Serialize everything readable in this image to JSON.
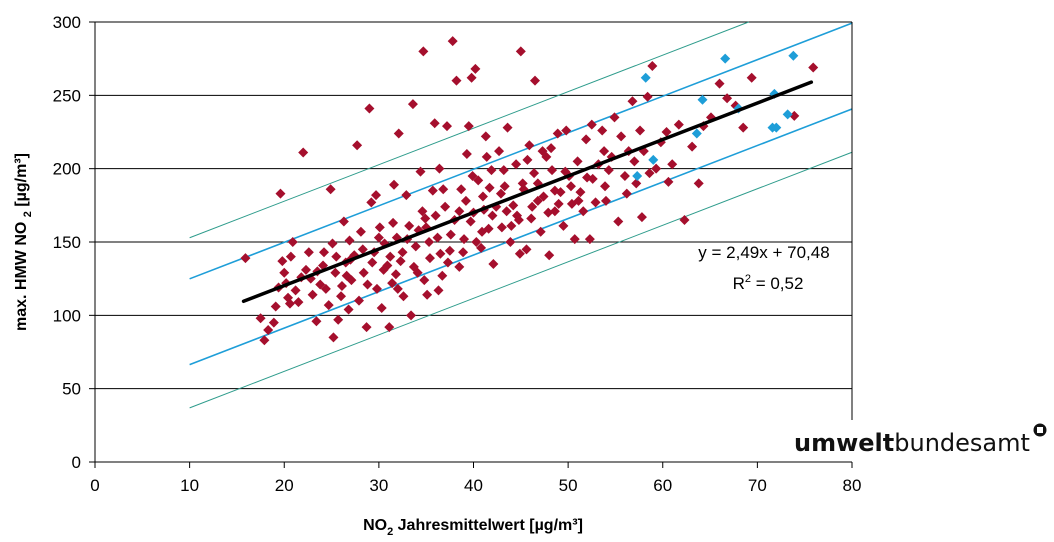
{
  "chart_data": {
    "type": "scatter",
    "title": "",
    "xlabel": "NO2 Jahresmittelwert [µg/m³]",
    "xlabel_parts": {
      "pre": "NO",
      "sub": "2",
      "post": " Jahresmittelwert [µg/m³]"
    },
    "ylabel": "max. HMW NO 2 [µg/m³]",
    "ylabel_parts": {
      "pre": "max. HMW NO ",
      "sub": "2",
      "post": " [µg/m³]"
    },
    "xlim": [
      0,
      80
    ],
    "ylim": [
      0,
      300
    ],
    "x_ticks": [
      "0",
      "10",
      "20",
      "30",
      "40",
      "50",
      "60",
      "70",
      "80"
    ],
    "y_ticks": [
      "0",
      "50",
      "100",
      "150",
      "200",
      "250",
      "300"
    ],
    "grid": "horizontal",
    "legend": "none",
    "colors": {
      "red_points": "#a50f2d",
      "blue_points": "#1e9ed8",
      "trend": "#000000",
      "blue_band": "#1e9ed8",
      "green_band": "#2e9c8c",
      "grid": "#000000"
    },
    "series": [
      {
        "values": [
          [
            15.9,
            139
          ],
          [
            17.5,
            98
          ],
          [
            17.9,
            83
          ],
          [
            18.3,
            90
          ],
          [
            18.9,
            95
          ],
          [
            19.1,
            106
          ],
          [
            19.4,
            119
          ],
          [
            19.6,
            183
          ],
          [
            19.8,
            137
          ],
          [
            20.0,
            129
          ],
          [
            20.2,
            122
          ],
          [
            20.4,
            112
          ],
          [
            20.6,
            108
          ],
          [
            20.9,
            150
          ],
          [
            21.2,
            117
          ],
          [
            21.5,
            109
          ],
          [
            21.8,
            126
          ],
          [
            22.0,
            211
          ],
          [
            22.3,
            131
          ],
          [
            22.6,
            143
          ],
          [
            23.0,
            114
          ],
          [
            23.4,
            96
          ],
          [
            23.8,
            121
          ],
          [
            24.1,
            134
          ],
          [
            24.4,
            118
          ],
          [
            24.7,
            107
          ],
          [
            24.9,
            186
          ],
          [
            25.1,
            149
          ],
          [
            25.2,
            85
          ],
          [
            25.4,
            129
          ],
          [
            25.7,
            97
          ],
          [
            26.0,
            113
          ],
          [
            26.3,
            164
          ],
          [
            26.5,
            136
          ],
          [
            26.8,
            104
          ],
          [
            27.1,
            124
          ],
          [
            27.4,
            141
          ],
          [
            27.7,
            216
          ],
          [
            27.9,
            110
          ],
          [
            28.1,
            157
          ],
          [
            28.4,
            129
          ],
          [
            28.7,
            92
          ],
          [
            29.0,
            241
          ],
          [
            29.2,
            177
          ],
          [
            29.5,
            143
          ],
          [
            29.8,
            118
          ],
          [
            30.1,
            160
          ],
          [
            30.3,
            105
          ],
          [
            30.6,
            149
          ],
          [
            30.9,
            134
          ],
          [
            31.1,
            92
          ],
          [
            31.4,
            122
          ],
          [
            31.6,
            189
          ],
          [
            31.9,
            153
          ],
          [
            32.1,
            224
          ],
          [
            32.3,
            137
          ],
          [
            32.6,
            113
          ],
          [
            32.9,
            182
          ],
          [
            33.2,
            161
          ],
          [
            33.4,
            100
          ],
          [
            33.6,
            244
          ],
          [
            33.9,
            147
          ],
          [
            34.1,
            129
          ],
          [
            34.4,
            198
          ],
          [
            34.7,
            280
          ],
          [
            34.9,
            166
          ],
          [
            35.1,
            114
          ],
          [
            35.4,
            139
          ],
          [
            35.7,
            185
          ],
          [
            35.9,
            231
          ],
          [
            36.2,
            153
          ],
          [
            36.4,
            200
          ],
          [
            36.7,
            127
          ],
          [
            37.0,
            174
          ],
          [
            37.2,
            229
          ],
          [
            37.5,
            144
          ],
          [
            37.8,
            287
          ],
          [
            38.0,
            165
          ],
          [
            38.2,
            260
          ],
          [
            38.5,
            133
          ],
          [
            38.7,
            186
          ],
          [
            39.0,
            152
          ],
          [
            39.3,
            210
          ],
          [
            39.5,
            229
          ],
          [
            39.8,
            262
          ],
          [
            40.0,
            170
          ],
          [
            40.2,
            268
          ],
          [
            40.5,
            192
          ],
          [
            40.8,
            146
          ],
          [
            41.0,
            181
          ],
          [
            41.3,
            222
          ],
          [
            41.6,
            159
          ],
          [
            41.9,
            199
          ],
          [
            42.1,
            135
          ],
          [
            42.4,
            174
          ],
          [
            42.7,
            212
          ],
          [
            43.0,
            160
          ],
          [
            43.3,
            188
          ],
          [
            43.6,
            228
          ],
          [
            43.9,
            150
          ],
          [
            44.2,
            175
          ],
          [
            44.5,
            203
          ],
          [
            44.8,
            165
          ],
          [
            45.0,
            280
          ],
          [
            45.3,
            186
          ],
          [
            45.6,
            145
          ],
          [
            45.9,
            216
          ],
          [
            46.2,
            174
          ],
          [
            46.5,
            260
          ],
          [
            46.8,
            190
          ],
          [
            47.1,
            157
          ],
          [
            47.4,
            181
          ],
          [
            47.7,
            208
          ],
          [
            48.0,
            141
          ],
          [
            48.3,
            199
          ],
          [
            48.6,
            171
          ],
          [
            48.9,
            224
          ],
          [
            49.2,
            184
          ],
          [
            49.5,
            161
          ],
          [
            49.8,
            226
          ],
          [
            50.1,
            195
          ],
          [
            50.4,
            176
          ],
          [
            50.7,
            152
          ],
          [
            51.0,
            205
          ],
          [
            51.3,
            184
          ],
          [
            51.6,
            171
          ],
          [
            51.9,
            220
          ],
          [
            52.3,
            152
          ],
          [
            52.6,
            193
          ],
          [
            52.9,
            177
          ],
          [
            53.2,
            203
          ],
          [
            53.6,
            226
          ],
          [
            53.9,
            188
          ],
          [
            54.3,
            199
          ],
          [
            54.6,
            208
          ],
          [
            54.9,
            235
          ],
          [
            55.3,
            164
          ],
          [
            55.6,
            222
          ],
          [
            56.0,
            195
          ],
          [
            56.4,
            212
          ],
          [
            56.8,
            246
          ],
          [
            57.2,
            190
          ],
          [
            57.6,
            226
          ],
          [
            58.0,
            212
          ],
          [
            58.4,
            249
          ],
          [
            58.9,
            270
          ],
          [
            59.3,
            200
          ],
          [
            59.8,
            218
          ],
          [
            60.4,
            225
          ],
          [
            61.0,
            203
          ],
          [
            61.7,
            230
          ],
          [
            62.3,
            165
          ],
          [
            63.1,
            215
          ],
          [
            63.8,
            190
          ],
          [
            64.3,
            229
          ],
          [
            65.1,
            235
          ],
          [
            66.0,
            258
          ],
          [
            66.8,
            248
          ],
          [
            67.7,
            243
          ],
          [
            68.5,
            228
          ],
          [
            69.4,
            262
          ],
          [
            73.9,
            236
          ],
          [
            75.9,
            269
          ],
          [
            31.2,
            140
          ],
          [
            33.0,
            152
          ],
          [
            35.0,
            160
          ],
          [
            36.5,
            142
          ],
          [
            38.5,
            171
          ],
          [
            40.3,
            150
          ],
          [
            42.0,
            168
          ],
          [
            43.5,
            171
          ],
          [
            45.2,
            190
          ],
          [
            46.8,
            178
          ],
          [
            48.6,
            185
          ],
          [
            50.3,
            188
          ],
          [
            52.0,
            194
          ],
          [
            53.8,
            212
          ],
          [
            27.0,
            138
          ],
          [
            28.8,
            121
          ],
          [
            30.5,
            131
          ],
          [
            32.5,
            143
          ],
          [
            34.2,
            158
          ],
          [
            36.0,
            168
          ],
          [
            37.6,
            155
          ],
          [
            39.2,
            178
          ],
          [
            41.1,
            172
          ],
          [
            42.9,
            183
          ],
          [
            44.6,
            168
          ],
          [
            46.4,
            197
          ],
          [
            47.9,
            170
          ],
          [
            49.7,
            198
          ],
          [
            23.5,
            130
          ],
          [
            25.5,
            140
          ],
          [
            26.9,
            151
          ],
          [
            29.3,
            136
          ],
          [
            31.8,
            128
          ],
          [
            33.7,
            133
          ],
          [
            35.3,
            150
          ],
          [
            37.3,
            136
          ],
          [
            39.7,
            164
          ],
          [
            41.7,
            187
          ],
          [
            43.2,
            199
          ],
          [
            45.7,
            206
          ],
          [
            48.2,
            214
          ],
          [
            51.1,
            178
          ],
          [
            20.7,
            140
          ],
          [
            22.8,
            125
          ],
          [
            24.2,
            143
          ],
          [
            26.1,
            120
          ],
          [
            28.3,
            145
          ],
          [
            30.0,
            153
          ],
          [
            32.0,
            118
          ],
          [
            34.6,
            171
          ],
          [
            36.8,
            186
          ],
          [
            38.9,
            143
          ],
          [
            40.9,
            157
          ],
          [
            44.0,
            161
          ],
          [
            46.1,
            166
          ],
          [
            49.0,
            176
          ],
          [
            54.0,
            178
          ],
          [
            56.2,
            183
          ],
          [
            58.6,
            197
          ],
          [
            60.6,
            191
          ],
          [
            57.0,
            205
          ],
          [
            29.7,
            182
          ],
          [
            34.8,
            124
          ],
          [
            39.9,
            195
          ],
          [
            44.9,
            142
          ],
          [
            26.6,
            127
          ],
          [
            31.5,
            163
          ],
          [
            36.3,
            117
          ],
          [
            41.4,
            208
          ],
          [
            47.3,
            212
          ],
          [
            52.5,
            230
          ],
          [
            57.8,
            167
          ]
        ]
      },
      {
        "values": [
          [
            57.3,
            195
          ],
          [
            58.2,
            262
          ],
          [
            59.0,
            206
          ],
          [
            63.6,
            224
          ],
          [
            64.2,
            247
          ],
          [
            66.6,
            275
          ],
          [
            68.0,
            241
          ],
          [
            71.8,
            251
          ],
          [
            72.0,
            228
          ],
          [
            73.2,
            237
          ],
          [
            73.8,
            277
          ],
          [
            71.6,
            228
          ]
        ]
      }
    ],
    "trendline": {
      "slope": 2.49,
      "intercept": 70.48,
      "x_range": [
        15.7,
        75.7
      ]
    },
    "band_lines": [
      {
        "style": "blue",
        "slope": 2.49,
        "intercept": 100.0,
        "x_range": [
          10,
          80
        ]
      },
      {
        "style": "blue",
        "slope": 2.49,
        "intercept": 41.5,
        "x_range": [
          10,
          80
        ]
      },
      {
        "style": "green",
        "slope": 2.49,
        "intercept": 128.0,
        "x_range": [
          10,
          70.5
        ]
      },
      {
        "style": "green",
        "slope": 2.49,
        "intercept": 12.0,
        "x_range": [
          10,
          80
        ]
      }
    ],
    "annotations": {
      "equation": "y = 2,49x + 70,48",
      "r2_pre": "R",
      "r2_sup": "2",
      "r2_post": " = 0,52"
    }
  },
  "logo": {
    "bold": "umwelt",
    "regular": "bundesamt"
  }
}
